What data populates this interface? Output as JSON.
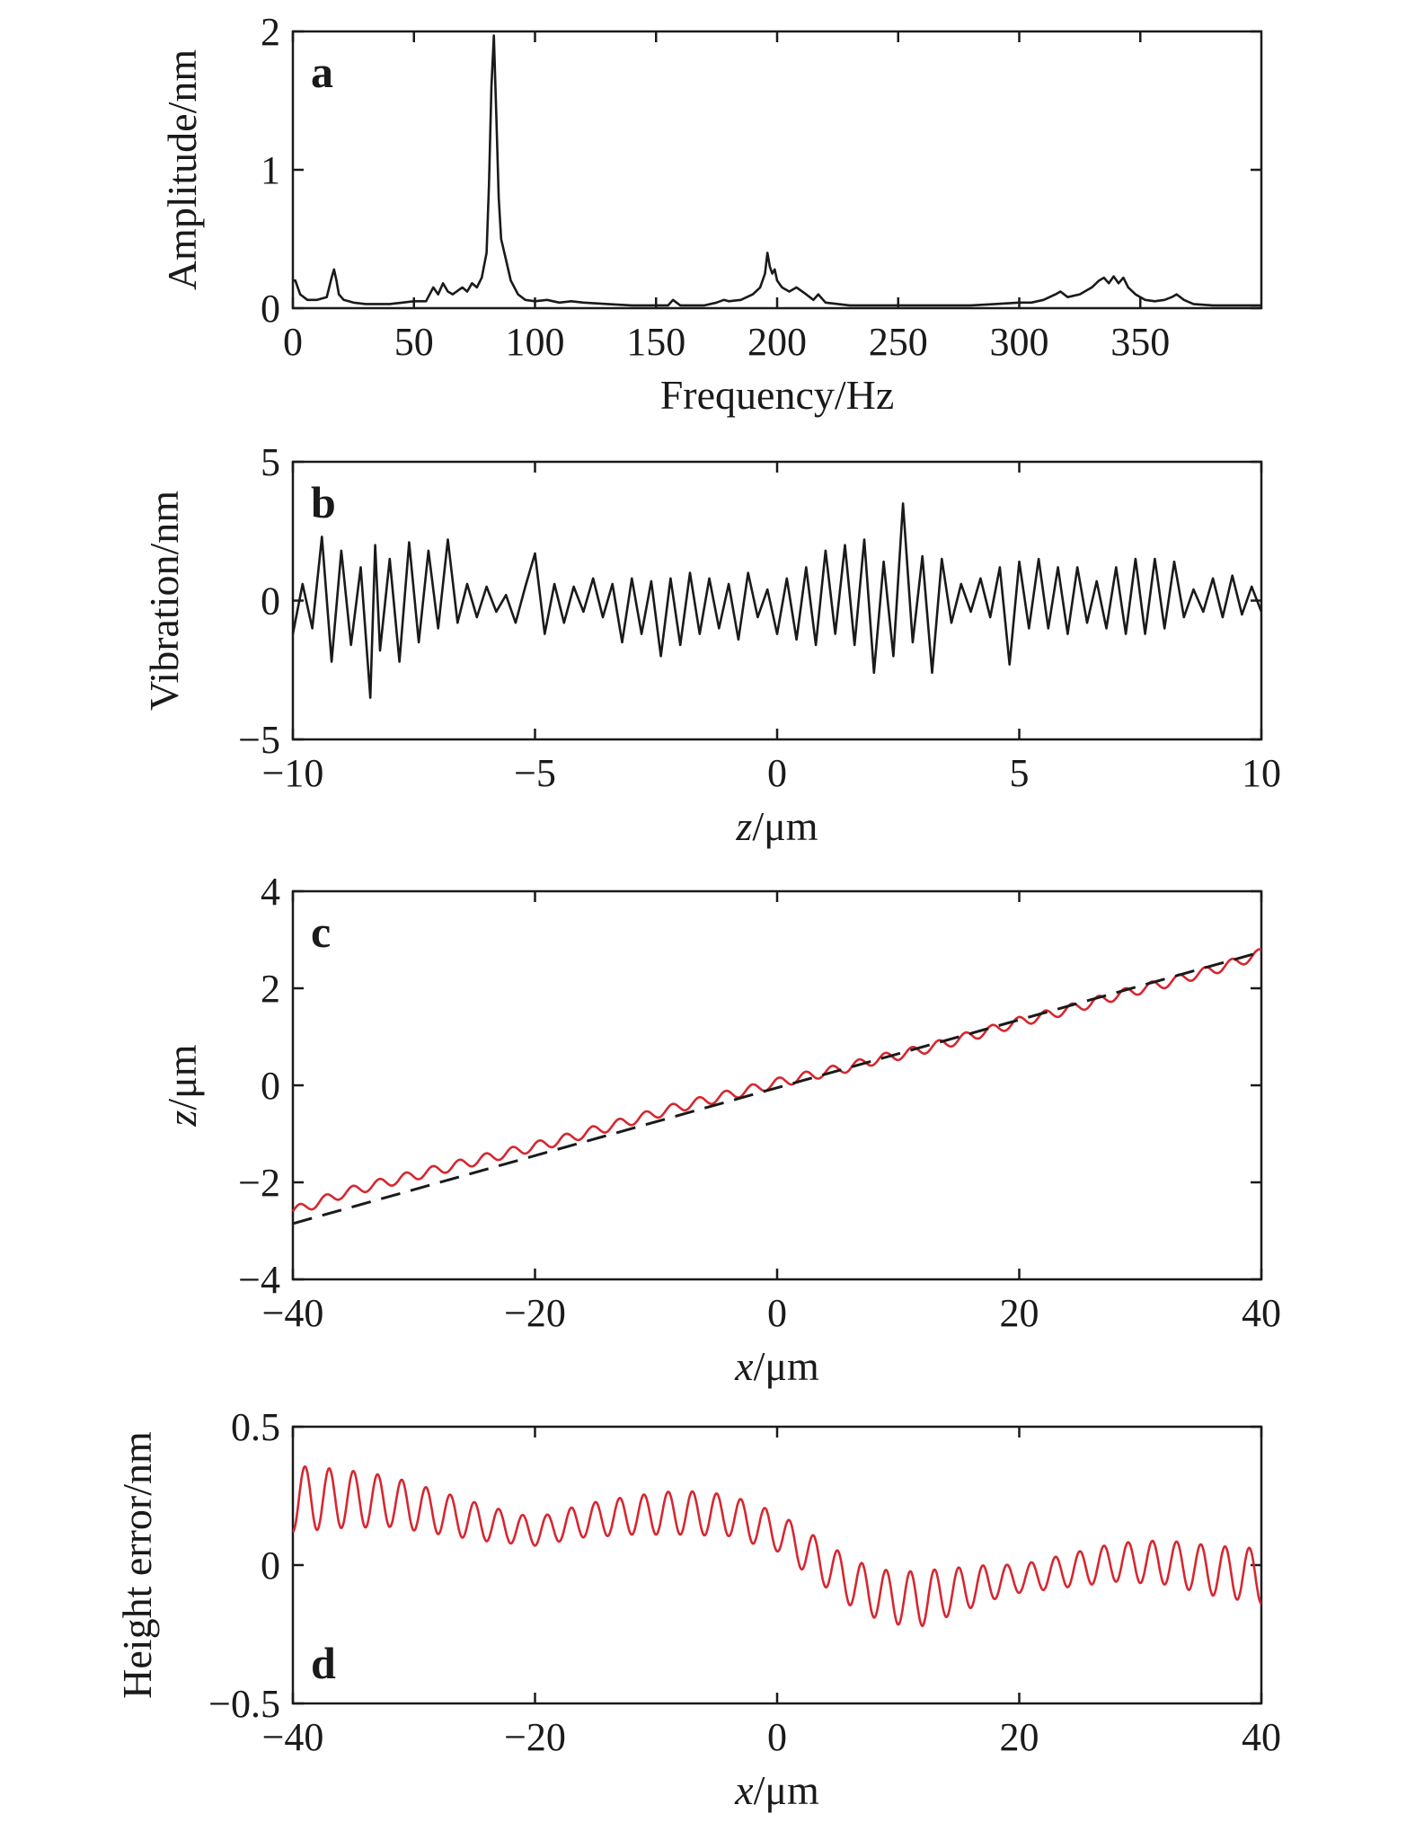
{
  "chart_data": [
    {
      "panel": "a",
      "type": "line",
      "xlabel": "Frequency/Hz",
      "ylabel": "Amplitude/nm",
      "xlim": [
        0,
        400
      ],
      "ylim": [
        0,
        2
      ],
      "xticks": [
        "0",
        "50",
        "100",
        "150",
        "200",
        "250",
        "300",
        "350"
      ],
      "yticks": [
        "0",
        "1",
        "2"
      ],
      "grid": false,
      "series": [
        {
          "color": "#1a1a1a",
          "style": "solid",
          "x": [
            0,
            1,
            3,
            6,
            10,
            14,
            16,
            17,
            18,
            19,
            21,
            25,
            30,
            40,
            50,
            55,
            58,
            60,
            62,
            64,
            66,
            70,
            72,
            74,
            76,
            78,
            80,
            81,
            82,
            83,
            84,
            85,
            86,
            88,
            90,
            93,
            96,
            100,
            105,
            110,
            115,
            120,
            130,
            140,
            150,
            155,
            157,
            160,
            170,
            175,
            178,
            180,
            185,
            190,
            193,
            195,
            196,
            197,
            198,
            199,
            200,
            202,
            205,
            208,
            212,
            215,
            217,
            220,
            230,
            240,
            250,
            260,
            270,
            280,
            290,
            300,
            305,
            310,
            315,
            317,
            320,
            325,
            330,
            333,
            335,
            337,
            339,
            341,
            343,
            345,
            348,
            352,
            356,
            360,
            363,
            365,
            368,
            372,
            380,
            390,
            400
          ],
          "y": [
            0.2,
            0.2,
            0.1,
            0.06,
            0.06,
            0.08,
            0.22,
            0.28,
            0.2,
            0.1,
            0.06,
            0.04,
            0.03,
            0.03,
            0.05,
            0.05,
            0.15,
            0.1,
            0.18,
            0.12,
            0.1,
            0.15,
            0.12,
            0.18,
            0.15,
            0.22,
            0.4,
            0.9,
            1.6,
            1.97,
            1.4,
            0.8,
            0.5,
            0.35,
            0.2,
            0.1,
            0.06,
            0.05,
            0.06,
            0.04,
            0.05,
            0.04,
            0.03,
            0.02,
            0.02,
            0.02,
            0.06,
            0.02,
            0.02,
            0.04,
            0.06,
            0.05,
            0.06,
            0.1,
            0.15,
            0.25,
            0.4,
            0.3,
            0.25,
            0.28,
            0.2,
            0.15,
            0.12,
            0.15,
            0.1,
            0.06,
            0.1,
            0.04,
            0.02,
            0.02,
            0.02,
            0.02,
            0.02,
            0.02,
            0.03,
            0.04,
            0.04,
            0.06,
            0.1,
            0.12,
            0.08,
            0.1,
            0.15,
            0.2,
            0.22,
            0.18,
            0.23,
            0.18,
            0.22,
            0.15,
            0.1,
            0.06,
            0.05,
            0.06,
            0.08,
            0.1,
            0.06,
            0.03,
            0.02,
            0.02,
            0.02
          ]
        }
      ]
    },
    {
      "panel": "b",
      "type": "line",
      "xlabel": "z/μm",
      "ylabel": "Vibration/nm",
      "xlim": [
        -10,
        10
      ],
      "ylim": [
        -5,
        5
      ],
      "xticks": [
        "−10",
        "−5",
        "0",
        "5",
        "10"
      ],
      "yticks": [
        "−5",
        "0",
        "5"
      ],
      "grid": false,
      "series": [
        {
          "color": "#1a1a1a",
          "style": "solid",
          "x": [
            -10,
            -9.8,
            -9.6,
            -9.4,
            -9.2,
            -9,
            -8.8,
            -8.6,
            -8.4,
            -8.3,
            -8.2,
            -8,
            -7.8,
            -7.6,
            -7.4,
            -7.2,
            -7,
            -6.8,
            -6.6,
            -6.4,
            -6.2,
            -6,
            -5.8,
            -5.6,
            -5.4,
            -5.2,
            -5,
            -4.8,
            -4.6,
            -4.4,
            -4.2,
            -4,
            -3.8,
            -3.6,
            -3.4,
            -3.2,
            -3,
            -2.8,
            -2.6,
            -2.4,
            -2.2,
            -2,
            -1.8,
            -1.6,
            -1.4,
            -1.2,
            -1,
            -0.8,
            -0.6,
            -0.4,
            -0.2,
            0,
            0.2,
            0.4,
            0.6,
            0.8,
            1,
            1.2,
            1.4,
            1.6,
            1.8,
            2,
            2.2,
            2.4,
            2.6,
            2.8,
            3,
            3.2,
            3.4,
            3.6,
            3.8,
            4,
            4.2,
            4.4,
            4.6,
            4.8,
            5,
            5.2,
            5.4,
            5.6,
            5.8,
            6,
            6.2,
            6.4,
            6.6,
            6.8,
            7,
            7.2,
            7.4,
            7.6,
            7.8,
            8,
            8.2,
            8.4,
            8.6,
            8.8,
            9,
            9.2,
            9.4,
            9.6,
            9.8,
            10
          ],
          "y": [
            -1.2,
            0.6,
            -1,
            2.3,
            -2.2,
            1.8,
            -1.6,
            1.2,
            -3.5,
            2,
            -1.8,
            1.5,
            -2.2,
            2.1,
            -1.5,
            1.8,
            -1,
            2.2,
            -0.8,
            0.6,
            -0.6,
            0.5,
            -0.4,
            0.2,
            -0.8,
            0.5,
            1.7,
            -1.2,
            0.6,
            -0.8,
            0.5,
            -0.4,
            0.8,
            -0.6,
            0.6,
            -1.5,
            0.8,
            -1.2,
            0.7,
            -2,
            0.8,
            -1.6,
            1,
            -1.2,
            0.8,
            -1,
            0.6,
            -1.4,
            1,
            -0.6,
            0.4,
            -1.2,
            0.8,
            -1.4,
            1.2,
            -1.6,
            1.8,
            -1.2,
            2,
            -1.6,
            2.2,
            -2.6,
            1.4,
            -2,
            3.5,
            -1.5,
            1.6,
            -2.6,
            1.5,
            -0.8,
            0.6,
            -0.4,
            0.8,
            -0.6,
            1.2,
            -2.3,
            1.4,
            -1,
            1.5,
            -1,
            1.2,
            -1.2,
            1.2,
            -0.8,
            0.7,
            -1,
            1.2,
            -1.2,
            1.5,
            -1.2,
            1.5,
            -1,
            1.4,
            -0.6,
            0.4,
            -0.4,
            0.8,
            -0.6,
            0.9,
            -0.5,
            0.5,
            -0.4
          ]
        }
      ]
    },
    {
      "panel": "c",
      "type": "line",
      "xlabel": "x/μm",
      "ylabel": "z/μm",
      "xlim": [
        -40,
        40
      ],
      "ylim": [
        -4,
        4
      ],
      "xticks": [
        "−40",
        "−20",
        "0",
        "20",
        "40"
      ],
      "yticks": [
        "−4",
        "−2",
        "0",
        "2",
        "4"
      ],
      "grid": false,
      "series": [
        {
          "color": "#d62730",
          "style": "solid",
          "x": [
            -40,
            -38,
            -36,
            -34,
            -32,
            -30,
            -28,
            -26,
            -24,
            -22,
            -20,
            -18,
            -16,
            -14,
            -12,
            -10,
            -8,
            -6,
            -4,
            -2,
            0,
            2,
            4,
            6,
            8,
            10,
            12,
            14,
            16,
            18,
            20,
            22,
            24,
            26,
            28,
            30,
            32,
            34,
            36,
            38,
            40
          ],
          "y": [
            -2.6,
            -2.42,
            -2.24,
            -2.1,
            -1.98,
            -1.86,
            -1.74,
            -1.62,
            -1.5,
            -1.38,
            -1.26,
            -1.14,
            -1.0,
            -0.86,
            -0.72,
            -0.58,
            -0.44,
            -0.32,
            -0.2,
            -0.08,
            0.05,
            0.16,
            0.27,
            0.38,
            0.52,
            0.62,
            0.74,
            0.87,
            1.02,
            1.16,
            1.31,
            1.43,
            1.56,
            1.7,
            1.85,
            1.98,
            2.1,
            2.24,
            2.38,
            2.54,
            2.72
          ]
        },
        {
          "color": "#1a1a1a",
          "style": "dashed",
          "x": [
            -40,
            40
          ],
          "y": [
            -2.85,
            2.75
          ]
        }
      ]
    },
    {
      "panel": "d",
      "type": "line",
      "xlabel": "x/μm",
      "ylabel": "Height error/nm",
      "xlim": [
        -40,
        40
      ],
      "ylim": [
        -0.5,
        0.5
      ],
      "xticks": [
        "−40",
        "−20",
        "0",
        "20",
        "40"
      ],
      "yticks": [
        "−0.5",
        "0",
        "0.5"
      ],
      "grid": false,
      "series": [
        {
          "color": "#d62730",
          "style": "solid",
          "x": [
            -40,
            -36,
            -32,
            -28,
            -24,
            -20,
            -16,
            -12,
            -8,
            -4,
            0,
            2,
            4,
            6,
            8,
            10,
            12,
            14,
            16,
            18,
            20,
            24,
            28,
            32,
            36,
            40
          ],
          "y": [
            0.24,
            0.24,
            0.23,
            0.19,
            0.15,
            0.12,
            0.16,
            0.18,
            0.19,
            0.18,
            0.12,
            0.06,
            0.0,
            -0.06,
            -0.1,
            -0.12,
            -0.12,
            -0.1,
            -0.08,
            -0.06,
            -0.05,
            -0.02,
            0.01,
            0.01,
            -0.02,
            -0.04
          ],
          "oscillation": {
            "period": 2.0,
            "amplitude_xy": [
              [
                -40,
                0.12
              ],
              [
                -20,
                0.05
              ],
              [
                -8,
                0.08
              ],
              [
                0,
                0.07
              ],
              [
                12,
                0.1
              ],
              [
                20,
                0.05
              ],
              [
                28,
                0.07
              ],
              [
                40,
                0.1
              ]
            ]
          }
        }
      ]
    }
  ]
}
